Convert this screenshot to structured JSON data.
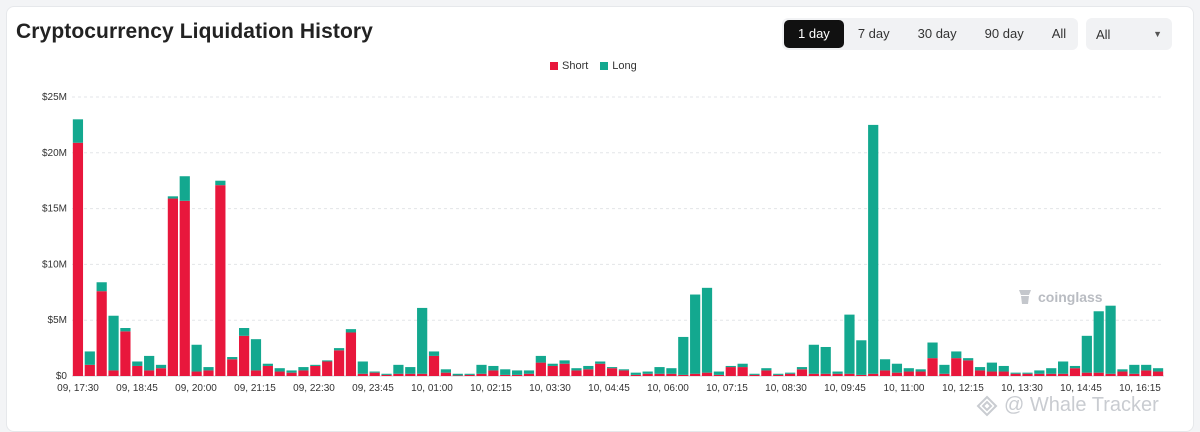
{
  "title": "Cryptocurrency Liquidation History",
  "range_buttons": [
    "1 day",
    "7 day",
    "30 day",
    "90 day",
    "All"
  ],
  "active_range": "1 day",
  "select_value": "All",
  "watermark": "coinglass",
  "footer_brand": "@ Whale Tracker",
  "colors": {
    "short": "#e8173c",
    "long": "#13a88f",
    "grid": "#e3e5e8"
  },
  "chart_data": {
    "type": "bar",
    "stacked": true,
    "title": "",
    "ylim": [
      0,
      25
    ],
    "y_ticks": [
      0,
      5,
      10,
      15,
      20,
      25
    ],
    "y_tick_labels": [
      "$0",
      "$5M",
      "$10M",
      "$15M",
      "$20M",
      "$25M"
    ],
    "x_tick_labels": [
      "09, 17:30",
      "09, 18:45",
      "09, 20:00",
      "09, 21:15",
      "09, 22:30",
      "09, 23:45",
      "10, 01:00",
      "10, 02:15",
      "10, 03:30",
      "10, 04:45",
      "10, 06:00",
      "10, 07:15",
      "10, 08:30",
      "10, 09:45",
      "10, 11:00",
      "10, 12:15",
      "10, 13:30",
      "10, 14:45",
      "10, 16:15"
    ],
    "legend": [
      "Short",
      "Long"
    ],
    "series": [
      {
        "name": "Short",
        "values": [
          20.9,
          1.0,
          7.6,
          0.5,
          4.0,
          0.9,
          0.5,
          0.7,
          15.9,
          15.7,
          0.4,
          0.5,
          17.1,
          1.5,
          3.6,
          0.5,
          0.9,
          0.4,
          0.3,
          0.5,
          0.9,
          1.3,
          2.3,
          3.9,
          0.2,
          0.3,
          0.1,
          0.2,
          0.2,
          0.2,
          1.8,
          0.3,
          0.05,
          0.1,
          0.2,
          0.5,
          0.1,
          0.1,
          0.2,
          1.2,
          0.9,
          1.1,
          0.5,
          0.6,
          1.1,
          0.7,
          0.5,
          0.1,
          0.2,
          0.2,
          0.2,
          0.1,
          0.2,
          0.3,
          0.1,
          0.8,
          0.8,
          0.1,
          0.5,
          0.1,
          0.2,
          0.6,
          0.2,
          0.2,
          0.2,
          0.2,
          0.1,
          0.2,
          0.5,
          0.3,
          0.4,
          0.4,
          1.6,
          0.2,
          1.6,
          1.4,
          0.5,
          0.4,
          0.4,
          0.2,
          0.2,
          0.2,
          0.2,
          0.2,
          0.7,
          0.3,
          0.3,
          0.2,
          0.4,
          0.2,
          0.5,
          0.4
        ]
      },
      {
        "name": "Long",
        "values": [
          2.1,
          1.2,
          0.8,
          4.9,
          0.3,
          0.4,
          1.3,
          0.3,
          0.2,
          2.2,
          2.4,
          0.3,
          0.4,
          0.2,
          0.7,
          2.8,
          0.2,
          0.3,
          0.2,
          0.3,
          0.1,
          0.1,
          0.2,
          0.3,
          1.1,
          0.1,
          0.1,
          0.8,
          0.6,
          5.9,
          0.4,
          0.3,
          0.15,
          0.1,
          0.8,
          0.4,
          0.5,
          0.4,
          0.3,
          0.6,
          0.2,
          0.3,
          0.2,
          0.3,
          0.2,
          0.1,
          0.1,
          0.2,
          0.2,
          0.6,
          0.5,
          3.4,
          7.1,
          7.6,
          0.3,
          0.1,
          0.3,
          0.1,
          0.2,
          0.1,
          0.1,
          0.2,
          2.6,
          2.4,
          0.2,
          5.3,
          3.1,
          22.3,
          1.0,
          0.8,
          0.3,
          0.2,
          1.4,
          0.8,
          0.6,
          0.2,
          0.3,
          0.8,
          0.5,
          0.1,
          0.1,
          0.3,
          0.5,
          1.1,
          0.2,
          3.3,
          5.5,
          6.1,
          0.2,
          0.8,
          0.5,
          0.3
        ]
      }
    ]
  }
}
